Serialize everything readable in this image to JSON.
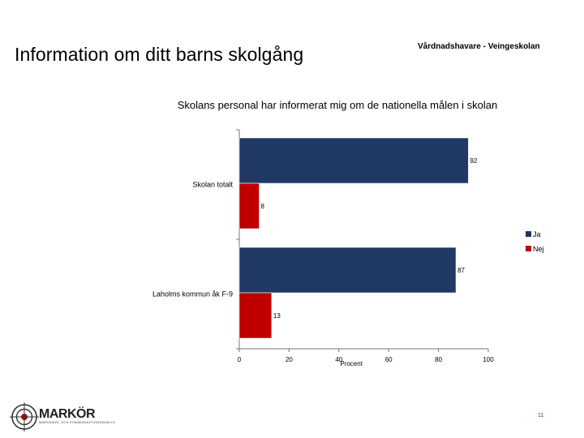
{
  "header": {
    "title": "Information om ditt barns skolgång",
    "subtitle": "Vårdnadshavare - Veingeskolan"
  },
  "chart_data": {
    "type": "bar",
    "orientation": "horizontal",
    "title": "Skolans personal har informerat mig om de nationella målen i skolan",
    "categories": [
      "Skolan totalt",
      "Laholms kommun åk F-9"
    ],
    "series": [
      {
        "name": "Ja",
        "values": [
          92,
          87
        ],
        "color": "#1f3864"
      },
      {
        "name": "Nej",
        "values": [
          8,
          13
        ],
        "color": "#c00000"
      }
    ],
    "xlabel": "Procent",
    "ylabel": "",
    "xlim": [
      0,
      100
    ],
    "xticks": [
      0,
      20,
      40,
      60,
      80,
      100
    ],
    "grid": false,
    "legend_position": "right"
  },
  "footer": {
    "logo_text": "MARKÖR",
    "logo_tagline": "MARKNADS- OCH KOMMUNIKATIONSANALYS",
    "page_number": "11"
  },
  "colors": {
    "ja": "#1f3864",
    "nej": "#c00000",
    "page_number": "#2d4a8a"
  }
}
